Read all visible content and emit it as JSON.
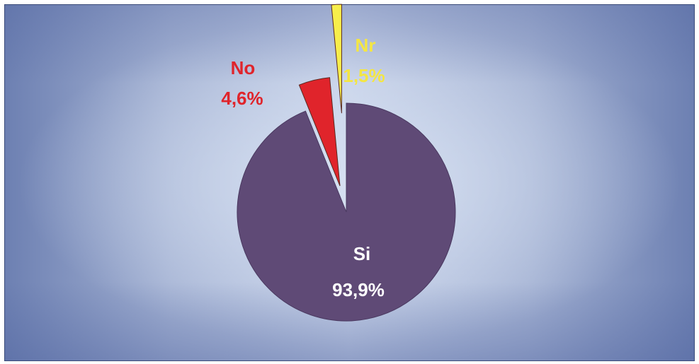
{
  "chart_data": {
    "type": "pie",
    "title": "",
    "slices": [
      {
        "label": "Si",
        "value": 93.9,
        "value_label": "93,9%",
        "color": "#5f4a76",
        "label_color": "#ffffff"
      },
      {
        "label": "No",
        "value": 4.6,
        "value_label": "4,6%",
        "color": "#e0242b",
        "label_color": "#e0242b"
      },
      {
        "label": "Nr",
        "value": 1.5,
        "value_label": "1,5%",
        "color": "#f7ee4b",
        "label_color": "#f4e642"
      }
    ],
    "start_angle_deg": 0,
    "exploded": [
      "No",
      "Nr"
    ],
    "legend": "none"
  }
}
